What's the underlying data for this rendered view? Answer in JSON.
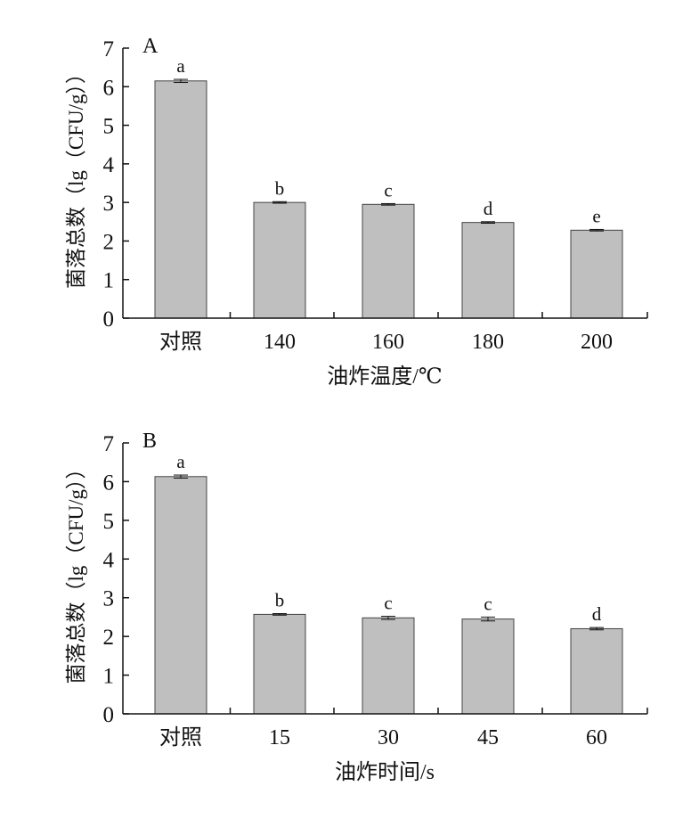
{
  "colors": {
    "bar_fill": "#bfbfbf",
    "bar_stroke": "#444444",
    "axis": "#111111"
  },
  "chart_data": [
    {
      "type": "bar",
      "panel_label": "A",
      "categories": [
        "对照",
        "140",
        "160",
        "180",
        "200"
      ],
      "values": [
        6.15,
        3.0,
        2.95,
        2.48,
        2.28
      ],
      "errors": [
        0.04,
        0.02,
        0.02,
        0.02,
        0.02
      ],
      "significance": [
        "a",
        "b",
        "c",
        "d",
        "e"
      ],
      "xlabel": "油炸温度/℃",
      "ylabel": "菌落总数（lg（CFU/g））",
      "ylim": [
        0,
        7
      ],
      "yticks": [
        "0",
        "1",
        "2",
        "3",
        "4",
        "5",
        "6",
        "7"
      ]
    },
    {
      "type": "bar",
      "panel_label": "B",
      "categories": [
        "对照",
        "15",
        "30",
        "45",
        "60"
      ],
      "values": [
        6.13,
        2.57,
        2.48,
        2.45,
        2.2
      ],
      "errors": [
        0.04,
        0.02,
        0.04,
        0.05,
        0.03
      ],
      "significance": [
        "a",
        "b",
        "c",
        "c",
        "d"
      ],
      "xlabel": "油炸时间/s",
      "ylabel": "菌落总数（lg（CFU/g））",
      "ylim": [
        0,
        7
      ],
      "yticks": [
        "0",
        "1",
        "2",
        "3",
        "4",
        "5",
        "6",
        "7"
      ]
    }
  ]
}
